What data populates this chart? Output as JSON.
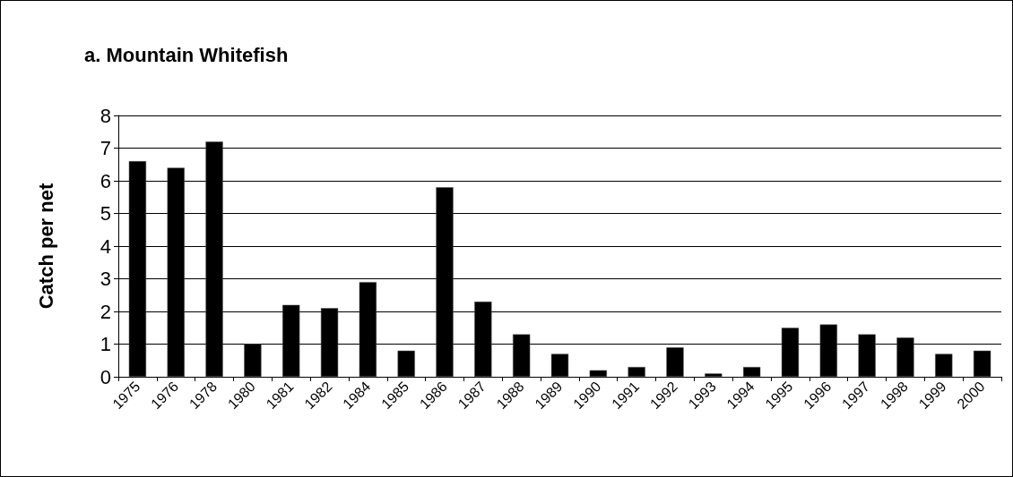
{
  "chart_data": {
    "type": "bar",
    "title": "a. Mountain Whitefish",
    "ylabel": "Catch per net",
    "categories": [
      "1975",
      "1976",
      "1978",
      "1980",
      "1981",
      "1982",
      "1984",
      "1985",
      "1986",
      "1987",
      "1988",
      "1989",
      "1990",
      "1991",
      "1992",
      "1993",
      "1994",
      "1995",
      "1996",
      "1997",
      "1998",
      "1999",
      "2000"
    ],
    "values": [
      6.6,
      6.4,
      7.2,
      1.0,
      2.2,
      2.1,
      2.9,
      0.8,
      5.8,
      2.3,
      1.3,
      0.7,
      0.2,
      0.3,
      0.9,
      0.1,
      0.3,
      1.5,
      1.6,
      1.3,
      1.2,
      0.7,
      0.8
    ],
    "color": "#000000",
    "ylim": [
      0,
      8
    ],
    "yticks": [
      0,
      1,
      2,
      3,
      4,
      5,
      6,
      7,
      8
    ],
    "grid": "y"
  }
}
